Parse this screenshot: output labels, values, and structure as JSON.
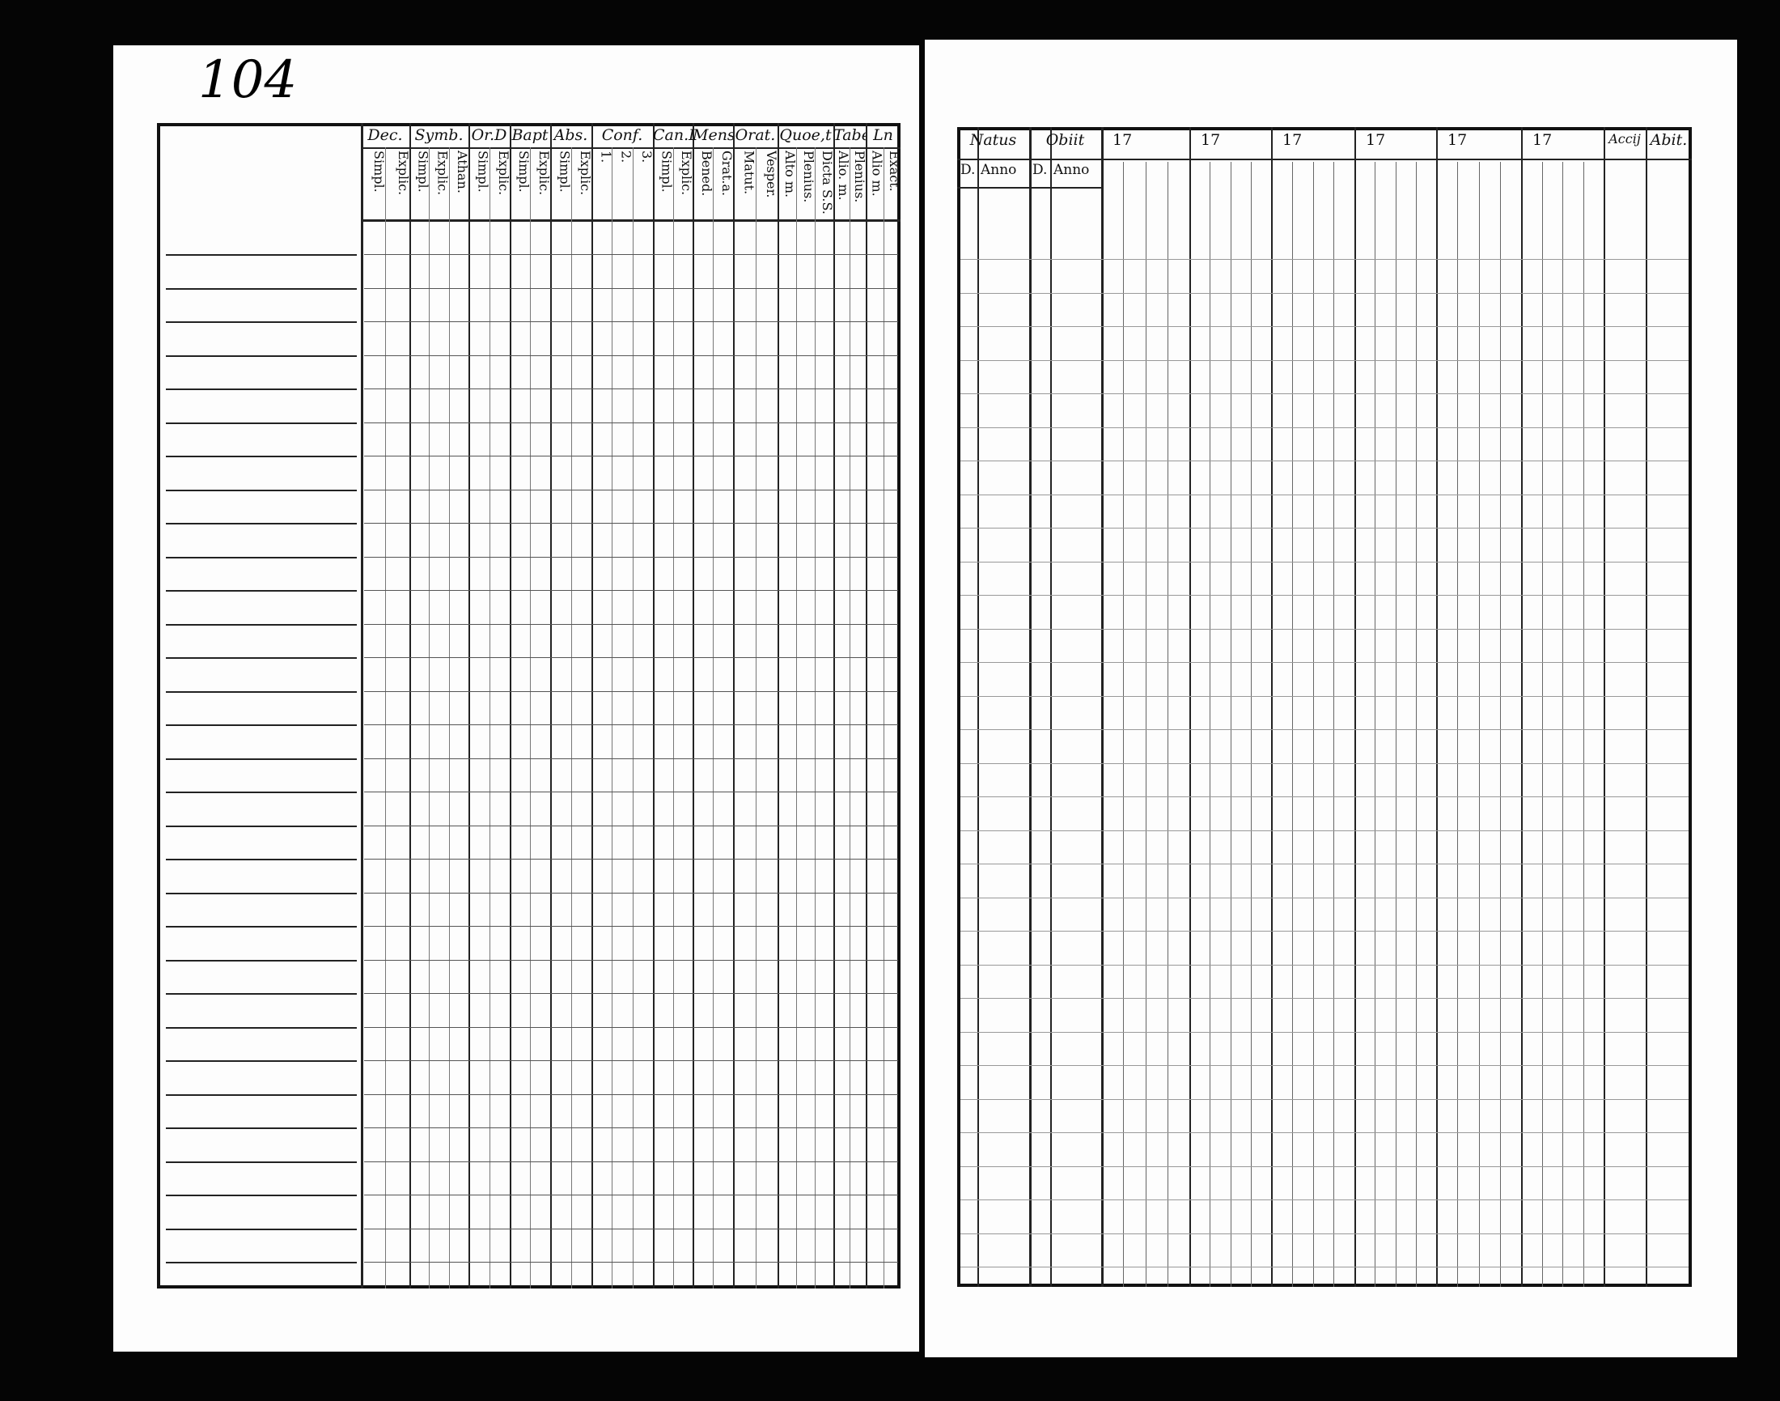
{
  "left_page": {
    "page_number": "104",
    "columns": [
      {
        "head": "Dec.",
        "sub": [
          "Explic.",
          "Simpl."
        ]
      },
      {
        "head": "Symb.",
        "sub": [
          "Athan.",
          "Explic.",
          "Simpl."
        ]
      },
      {
        "head": "Or.D",
        "sub": [
          "Explic.",
          "Simpl."
        ]
      },
      {
        "head": "Bapt",
        "sub": [
          "Explic.",
          "Simpl."
        ]
      },
      {
        "head": "Abs.",
        "sub": [
          "Explic.",
          "Simpl."
        ]
      },
      {
        "head": "Conf.",
        "sub": [
          "3.",
          "2.",
          "1."
        ]
      },
      {
        "head": "Can.D",
        "sub": [
          "Explic.",
          "Simpl."
        ]
      },
      {
        "head": "Mens.",
        "sub": [
          "Grat.a.",
          "Bened."
        ]
      },
      {
        "head": "Orat.",
        "sub": [
          "Vesper.",
          "Matut."
        ]
      },
      {
        "head": "Quoe,t",
        "sub": [
          "Dicta S.S.",
          "Plenius.",
          "Alto m."
        ]
      },
      {
        "head": "Tabe",
        "sub": [
          "Plenius.",
          "Alio. m."
        ]
      },
      {
        "head": "Ln",
        "sub": [
          "Exact.",
          "Alio m."
        ]
      }
    ]
  },
  "right_page": {
    "natus": {
      "head": "Natus",
      "sub": [
        "D.",
        "Anno"
      ]
    },
    "obiit": {
      "head": "Obiit",
      "sub": [
        "D.",
        "Anno"
      ]
    },
    "years": [
      "17",
      "17",
      "17",
      "17",
      "17",
      "17"
    ],
    "accij": "Accij",
    "abit": "Abit."
  }
}
